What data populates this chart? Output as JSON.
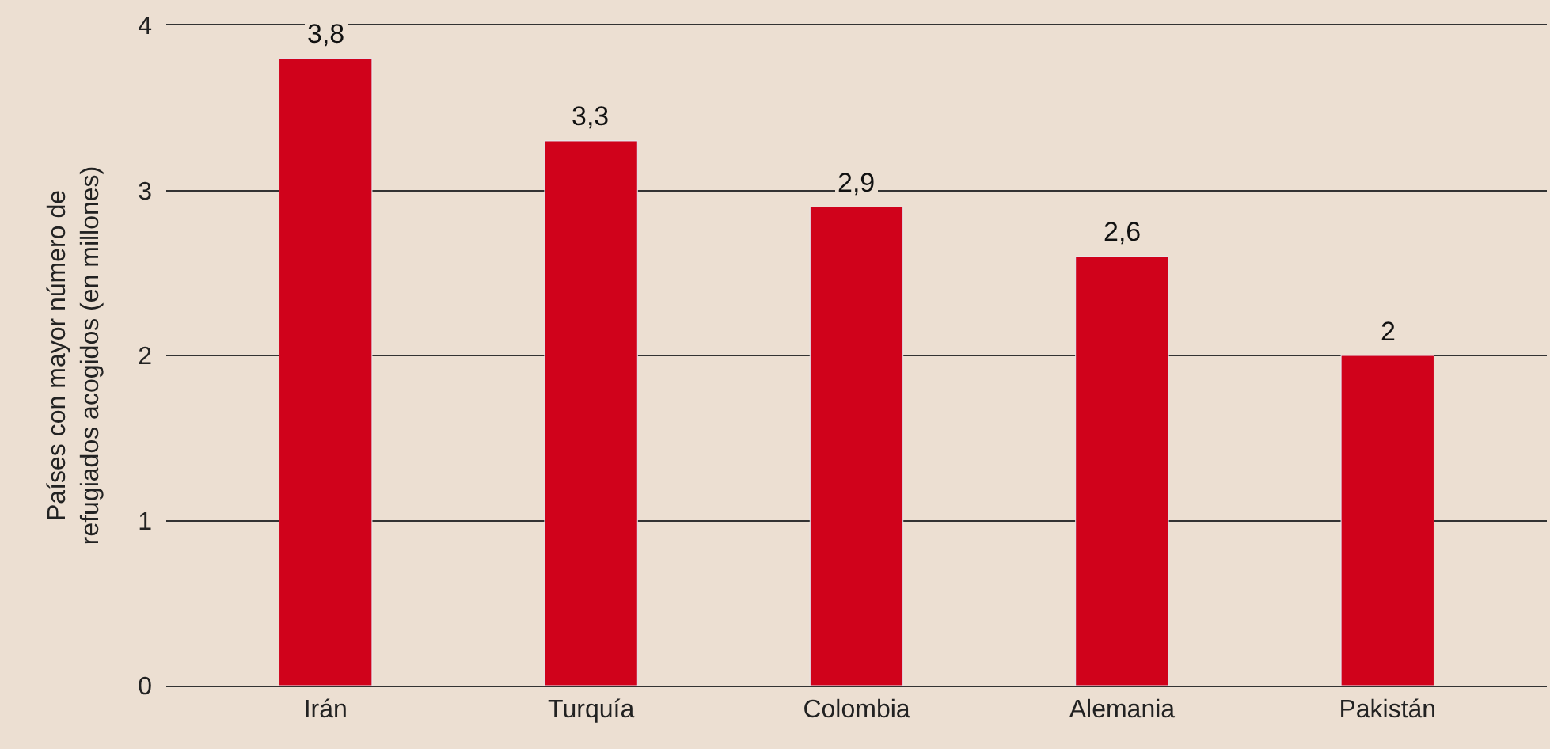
{
  "chart_data": {
    "type": "bar",
    "ylabel": "Países con mayor número de\nrefugiados acogidos (en millones)",
    "categories": [
      "Irán",
      "Turquía",
      "Colombia",
      "Alemania",
      "Pakistán"
    ],
    "values": [
      3.8,
      3.3,
      2.9,
      2.6,
      2
    ],
    "value_labels": [
      "3,8",
      "3,3",
      "2,9",
      "2,6",
      "2"
    ],
    "color": "#d0021b",
    "ylim": [
      0,
      4
    ],
    "yticks": [
      0,
      1,
      2,
      3,
      4
    ],
    "grid": "y"
  }
}
